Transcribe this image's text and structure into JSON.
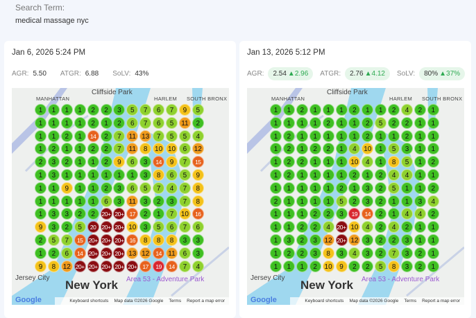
{
  "search": {
    "label": "Search Term:",
    "value": "medical massage nyc"
  },
  "map_labels": {
    "cliffside": "Cliffside Park",
    "south_bronx": "SOUTH BRONX",
    "harlem": "HARLEM",
    "manhattan": "MANHATTAN",
    "jersey": "Jersey City",
    "new_york": "New York",
    "park": "Area 53 - Adventure Park",
    "google": "Google",
    "footer": [
      "Keyboard shortcuts",
      "Map data ©2026 Google",
      "Terms",
      "Report a map error"
    ]
  },
  "colors": {
    "green": "#3fbf22",
    "lightgreen": "#8fd12e",
    "yellow": "#f4c21b",
    "orange": "#ef9a1c",
    "redorange": "#e7621d",
    "red": "#d8262f",
    "darkred": "#8a0c10"
  },
  "scans": [
    {
      "date": "Jan 6, 2026 5:24 PM",
      "metrics": {
        "agr_label": "AGR:",
        "agr": "5.50",
        "atgr_label": "ATGR:",
        "atgr": "6.88",
        "solv_label": "SoLV:",
        "solv": "43%"
      },
      "grid": [
        [
          "1",
          "1",
          "1",
          "1",
          "2",
          "2",
          "3",
          "5",
          "7",
          "6",
          "7",
          "9",
          "5"
        ],
        [
          "1",
          "1",
          "1",
          "1",
          "2",
          "1",
          "2",
          "6",
          "7",
          "6",
          "5",
          "11",
          "2"
        ],
        [
          "1",
          "1",
          "2",
          "1",
          "14",
          "2",
          "7",
          "11",
          "13",
          "7",
          "5",
          "5",
          "4"
        ],
        [
          "1",
          "2",
          "1",
          "1",
          "2",
          "2",
          "7",
          "11",
          "8",
          "10",
          "10",
          "6",
          "12"
        ],
        [
          "2",
          "3",
          "2",
          "1",
          "1",
          "2",
          "9",
          "6",
          "3",
          "14",
          "9",
          "7",
          "15"
        ],
        [
          "1",
          "3",
          "1",
          "1",
          "1",
          "1",
          "1",
          "1",
          "3",
          "8",
          "6",
          "5",
          "9"
        ],
        [
          "1",
          "1",
          "9",
          "1",
          "1",
          "2",
          "3",
          "6",
          "5",
          "7",
          "4",
          "7",
          "8"
        ],
        [
          "1",
          "1",
          "1",
          "1",
          "1",
          "6",
          "3",
          "11",
          "3",
          "2",
          "3",
          "7",
          "8"
        ],
        [
          "1",
          "3",
          "3",
          "2",
          "2",
          "20+",
          "20+",
          "17",
          "2",
          "1",
          "7",
          "10",
          "16"
        ],
        [
          "9",
          "3",
          "2",
          "5",
          "20",
          "20+",
          "20+",
          "10",
          "3",
          "5",
          "6",
          "7",
          "6"
        ],
        [
          "2",
          "5",
          "7",
          "15",
          "20+",
          "20+",
          "20+",
          "16",
          "8",
          "8",
          "8",
          "3",
          "3"
        ],
        [
          "1",
          "2",
          "6",
          "14",
          "20+",
          "20+",
          "20+",
          "13",
          "12",
          "14",
          "11",
          "6",
          "3"
        ],
        [
          "9",
          "8",
          "12",
          "20+",
          "20+",
          "20+",
          "20+",
          "20+",
          "17",
          "19",
          "14",
          "7",
          "4"
        ]
      ]
    },
    {
      "date": "Jan 13, 2026 5:12 PM",
      "metrics": {
        "agr_label": "AGR:",
        "agr": "2.54",
        "agr_delta": "▲2.96",
        "atgr_label": "ATGR:",
        "atgr": "2.76",
        "atgr_delta": "▲4.12",
        "solv_label": "SoLV:",
        "solv": "80%",
        "solv_delta": "▲37%"
      },
      "grid": [
        [
          "1",
          "1",
          "2",
          "1",
          "1",
          "1",
          "2",
          "1",
          "1",
          "2",
          "4",
          "2",
          "1"
        ],
        [
          "1",
          "1",
          "1",
          "1",
          "2",
          "1",
          "1",
          "2",
          "5",
          "2",
          "2",
          "1",
          "1"
        ],
        [
          "1",
          "2",
          "1",
          "1",
          "1",
          "1",
          "1",
          "2",
          "1",
          "1",
          "2",
          "1",
          "1"
        ],
        [
          "1",
          "2",
          "1",
          "2",
          "2",
          "1",
          "4",
          "10",
          "1",
          "5",
          "3",
          "1",
          "1"
        ],
        [
          "1",
          "2",
          "2",
          "1",
          "1",
          "1",
          "10",
          "4",
          "1",
          "8",
          "5",
          "1",
          "2"
        ],
        [
          "1",
          "2",
          "1",
          "1",
          "1",
          "1",
          "2",
          "1",
          "2",
          "4",
          "4",
          "1",
          "1"
        ],
        [
          "1",
          "1",
          "1",
          "1",
          "1",
          "2",
          "1",
          "3",
          "2",
          "5",
          "1",
          "1",
          "2"
        ],
        [
          "2",
          "1",
          "1",
          "1",
          "1",
          "5",
          "2",
          "3",
          "2",
          "1",
          "1",
          "3",
          "4"
        ],
        [
          "1",
          "1",
          "1",
          "2",
          "2",
          "3",
          "19",
          "14",
          "2",
          "1",
          "4",
          "4",
          "2"
        ],
        [
          "1",
          "1",
          "2",
          "2",
          "4",
          "20+",
          "10",
          "4",
          "2",
          "4",
          "2",
          "1",
          "1"
        ],
        [
          "1",
          "3",
          "2",
          "3",
          "12",
          "20+",
          "12",
          "3",
          "2",
          "2",
          "3",
          "1",
          "1"
        ],
        [
          "1",
          "2",
          "2",
          "3",
          "8",
          "3",
          "4",
          "3",
          "2",
          "7",
          "3",
          "2",
          "1"
        ],
        [
          "1",
          "1",
          "1",
          "2",
          "10",
          "9",
          "2",
          "2",
          "5",
          "8",
          "3",
          "2",
          "1"
        ]
      ]
    }
  ]
}
